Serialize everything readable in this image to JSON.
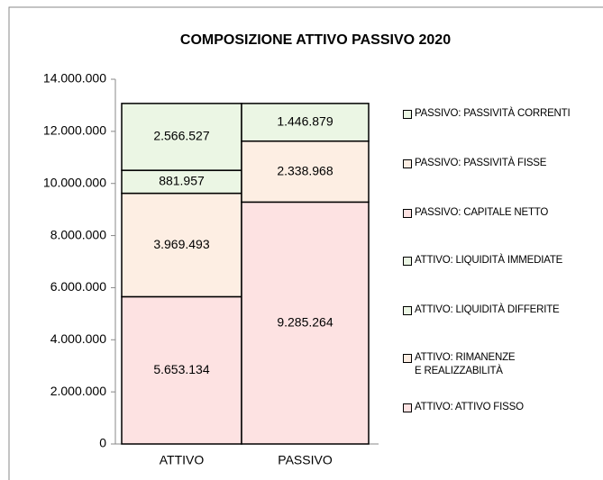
{
  "chart_data": {
    "type": "stacked_bar",
    "title": "COMPOSIZIONE  ATTIVO PASSIVO 2020",
    "categories": [
      "ATTIVO",
      "PASSIVO"
    ],
    "series": [
      {
        "name": "ATTIVO: ATTIVO FISSO",
        "color": "#fde2e2",
        "values": [
          5653134,
          null
        ],
        "value_labels": [
          "5.653.134",
          null
        ]
      },
      {
        "name": "ATTIVO: RIMANENZE E REALIZZABILITÀ",
        "color": "#fdeee3",
        "values": [
          3969493,
          null
        ],
        "value_labels": [
          "3.969.493",
          null
        ]
      },
      {
        "name": "ATTIVO: LIQUIDITÀ DIFFERITE",
        "color": "#ebf6e4",
        "values": [
          881957,
          null
        ],
        "value_labels": [
          "881.957",
          null
        ]
      },
      {
        "name": "ATTIVO: LIQUIDITÀ IMMEDIATE",
        "color": "#ebf6e4",
        "values": [
          2566527,
          null
        ],
        "value_labels": [
          "2.566.527",
          null
        ]
      },
      {
        "name": "PASSIVO: CAPITALE NETTO",
        "color": "#fde2e2",
        "values": [
          null,
          9285264
        ],
        "value_labels": [
          null,
          "9.285.264"
        ]
      },
      {
        "name": "PASSIVO: PASSIVITÀ FISSE",
        "color": "#fdeee3",
        "values": [
          null,
          2338968
        ],
        "value_labels": [
          null,
          "2.338.968"
        ]
      },
      {
        "name": "PASSIVO: PASSIVITÀ CORRENTI",
        "color": "#ebf6e4",
        "values": [
          null,
          1446879
        ],
        "value_labels": [
          null,
          "1.446.879"
        ]
      }
    ],
    "ylim": [
      0,
      14000000
    ],
    "yticks": [
      0,
      {
        "value": 2000000,
        "label": "2.000.000"
      },
      {
        "value": 4000000,
        "label": "4.000.000"
      },
      {
        "value": 6000000,
        "label": "6.000.000"
      },
      {
        "value": 8000000,
        "label": "8.000.000"
      },
      {
        "value": 10000000,
        "label": "10.000.000"
      },
      {
        "value": 12000000,
        "label": "12.000.000"
      },
      {
        "value": 14000000,
        "label": "14.000.000"
      }
    ],
    "legend": "right"
  }
}
